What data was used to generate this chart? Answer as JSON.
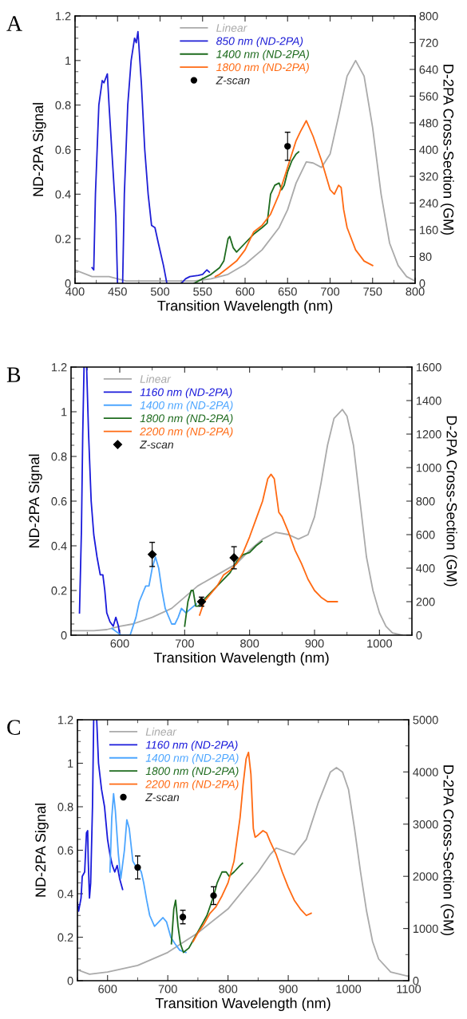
{
  "chart_data": [
    {
      "type": "line",
      "title": "A",
      "xlabel": "Transition Wavelength (nm)",
      "ylabel": "ND-2PA Signal",
      "y2label": "D-2PA Cross-Section (GM)",
      "legend": "top",
      "grid": false,
      "xlim": [
        400,
        800
      ],
      "xticks": [
        400,
        450,
        500,
        550,
        600,
        650,
        700,
        750,
        800
      ],
      "ylim": [
        0,
        1.2
      ],
      "yticks": [
        0,
        0.2,
        0.4,
        0.6,
        0.8,
        1,
        1.2
      ],
      "y2lim": [
        0,
        800
      ],
      "y2ticks": [
        0,
        80,
        160,
        240,
        320,
        400,
        480,
        560,
        640,
        720,
        800
      ],
      "series": [
        {
          "name": "Linear",
          "color": "#aaaaaa",
          "x": [
            400,
            420,
            440,
            460,
            500,
            540,
            560,
            580,
            600,
            620,
            640,
            650,
            660,
            672,
            680,
            690,
            700,
            710,
            720,
            730,
            740,
            750,
            760,
            770,
            780,
            790,
            800
          ],
          "values": [
            0.06,
            0.03,
            0.03,
            0.01,
            0.01,
            0.01,
            0.02,
            0.04,
            0.085,
            0.15,
            0.25,
            0.33,
            0.45,
            0.545,
            0.54,
            0.52,
            0.58,
            0.75,
            0.93,
            1.0,
            0.93,
            0.7,
            0.4,
            0.18,
            0.08,
            0.03,
            0.01
          ]
        },
        {
          "name": "850 nm (ND-2PA)",
          "color": "#1f1fd6",
          "x": [
            420,
            422,
            424,
            426,
            428,
            432,
            434,
            438,
            440,
            444,
            448,
            450,
            453,
            456,
            458,
            462,
            466,
            470,
            472,
            474,
            478,
            482,
            486,
            490,
            494,
            498,
            504,
            508,
            516,
            525,
            530,
            535,
            545,
            550,
            555,
            558
          ],
          "values": [
            0.07,
            0.06,
            0.4,
            0.6,
            0.8,
            0.91,
            0.9,
            0.94,
            0.8,
            0.55,
            0.3,
            0,
            null,
            0,
            0.4,
            0.8,
            1.0,
            1.1,
            1.08,
            1.13,
            0.9,
            0.6,
            0.4,
            0.26,
            0.25,
            0.18,
            0.08,
            0,
            null,
            0,
            0.02,
            0.03,
            0.035,
            0.04,
            0.06,
            0.05
          ]
        },
        {
          "name": "1400 nm (ND-2PA)",
          "color": "#1e6b1e",
          "x": [
            540,
            550,
            560,
            570,
            575,
            580,
            582,
            586,
            590,
            600,
            610,
            620,
            626,
            630,
            635,
            640,
            643,
            646,
            650,
            655,
            660,
            663
          ],
          "values": [
            0,
            0.02,
            0.04,
            0.07,
            0.1,
            0.2,
            0.21,
            0.16,
            0.14,
            0.18,
            0.22,
            0.25,
            0.27,
            0.4,
            0.44,
            0.45,
            0.42,
            0.44,
            0.5,
            0.55,
            0.58,
            0.59
          ]
        },
        {
          "name": "1800 nm (ND-2PA)",
          "color": "#ff6a13",
          "x": [
            565,
            570,
            580,
            590,
            600,
            610,
            620,
            630,
            640,
            650,
            660,
            665,
            672,
            680,
            690,
            700,
            705,
            710,
            713,
            716,
            720,
            730,
            740,
            750
          ],
          "values": [
            0.03,
            0.04,
            0.07,
            0.1,
            0.15,
            0.23,
            0.26,
            0.31,
            0.4,
            0.52,
            0.64,
            0.68,
            0.73,
            0.66,
            0.55,
            0.42,
            0.4,
            0.44,
            0.43,
            0.33,
            0.25,
            0.15,
            0.1,
            0.08
          ]
        },
        {
          "name": "Z-scan",
          "type": "scatter",
          "axis": "y2",
          "marker": "circle",
          "color": "#000000",
          "x": [
            650
          ],
          "values": [
            410
          ],
          "errors": [
            42
          ]
        }
      ]
    },
    {
      "type": "line",
      "title": "B",
      "xlabel": "Transition Wavelength (nm)",
      "ylabel": "ND-2PA Signal",
      "y2label": "D-2PA Cross-Section (GM)",
      "legend": "top left",
      "grid": false,
      "xlim": [
        525,
        1050
      ],
      "xticks": [
        600,
        700,
        800,
        900,
        1000
      ],
      "ylim": [
        0,
        1.2
      ],
      "yticks": [
        0,
        0.2,
        0.4,
        0.6,
        0.8,
        1,
        1.2
      ],
      "y2lim": [
        0,
        1600
      ],
      "y2ticks": [
        0,
        200,
        400,
        600,
        800,
        1000,
        1200,
        1400,
        1600
      ],
      "series": [
        {
          "name": "Linear",
          "color": "#aaaaaa",
          "x": [
            525,
            560,
            580,
            600,
            620,
            650,
            680,
            700,
            720,
            750,
            780,
            800,
            820,
            840,
            860,
            875,
            890,
            900,
            910,
            920,
            930,
            943,
            950,
            960,
            970,
            980,
            990,
            1000,
            1010,
            1020,
            1035
          ],
          "values": [
            0.02,
            0.02,
            0.025,
            0.04,
            0.05,
            0.08,
            0.12,
            0.17,
            0.22,
            0.27,
            0.32,
            0.38,
            0.43,
            0.46,
            0.45,
            0.43,
            0.45,
            0.53,
            0.68,
            0.85,
            0.97,
            1.01,
            0.98,
            0.85,
            0.6,
            0.35,
            0.2,
            0.1,
            0.04,
            0.01,
            0
          ]
        },
        {
          "name": "1160 nm (ND-2PA)",
          "color": "#1a1adb",
          "x": [
            538,
            541,
            543,
            545,
            547,
            549,
            552,
            556,
            560,
            565,
            570,
            574,
            577,
            580,
            585,
            590,
            594,
            598,
            600
          ],
          "values": [
            0.1,
            0.47,
            0.9,
            1.2,
            null,
            1.2,
            0.9,
            0.6,
            0.45,
            0.35,
            0.27,
            0.27,
            0.2,
            0.1,
            0.06,
            0.04,
            0.08,
            0.04,
            0
          ]
        },
        {
          "name": "1400 nm (ND-2PA)",
          "color": "#4da6ff",
          "x": [
            588,
            602,
            616,
            625,
            630,
            640,
            645,
            650,
            655,
            660,
            665,
            670,
            680,
            685,
            690,
            695,
            702,
            710,
            718
          ],
          "values": [
            0.03,
            0,
            0,
            0.08,
            0.15,
            0.22,
            0.22,
            0.3,
            0.35,
            0.3,
            0.2,
            0.12,
            0.05,
            0.05,
            0.08,
            0.12,
            0.1,
            0.12,
            0.14
          ]
        },
        {
          "name": "1800 nm (ND-2PA)",
          "color": "#1e6b1e",
          "x": [
            700,
            705,
            710,
            713,
            717,
            721,
            730,
            750,
            770,
            780,
            790,
            800,
            810,
            819
          ],
          "values": [
            0.04,
            0.15,
            0.2,
            0.2,
            0.13,
            0.13,
            0.16,
            0.22,
            0.28,
            0.33,
            0.36,
            0.37,
            0.4,
            0.42
          ]
        },
        {
          "name": "2200 nm (ND-2PA)",
          "color": "#ff6a13",
          "x": [
            723,
            730,
            750,
            760,
            770,
            780,
            790,
            800,
            810,
            820,
            828,
            833,
            838,
            845,
            850,
            860,
            870,
            880,
            890,
            900,
            910,
            920,
            935
          ],
          "values": [
            0.09,
            0.15,
            0.22,
            0.27,
            0.29,
            0.32,
            0.37,
            0.44,
            0.52,
            0.6,
            0.7,
            0.72,
            0.7,
            0.55,
            0.53,
            0.46,
            0.38,
            0.32,
            0.25,
            0.2,
            0.17,
            0.15,
            0.15
          ]
        },
        {
          "name": "Z-scan",
          "type": "scatter",
          "axis": "y2",
          "marker": "diamond",
          "color": "#000000",
          "x": [
            650,
            726,
            776
          ],
          "values": [
            482,
            200,
            462
          ],
          "errors": [
            72,
            27,
            66
          ]
        }
      ]
    },
    {
      "type": "line",
      "title": "C",
      "xlabel": "Transition Wavelength (nm)",
      "ylabel": "ND-2PA Signal",
      "y2label": "D-2PA Cross-Section (GM)",
      "legend": "top left",
      "grid": false,
      "xlim": [
        550,
        1100
      ],
      "xticks": [
        600,
        700,
        800,
        900,
        1000,
        1100
      ],
      "ylim": [
        0,
        1.2
      ],
      "yticks": [
        0,
        0.2,
        0.4,
        0.6,
        0.8,
        1,
        1.2
      ],
      "y2lim": [
        0,
        5000
      ],
      "y2ticks": [
        0,
        1000,
        2000,
        3000,
        4000,
        5000
      ],
      "series": [
        {
          "name": "Linear",
          "color": "#aaaaaa",
          "x": [
            550,
            570,
            600,
            650,
            700,
            750,
            800,
            850,
            870,
            880,
            900,
            910,
            930,
            950,
            970,
            980,
            990,
            1000,
            1010,
            1020,
            1030,
            1040,
            1050,
            1070,
            1100
          ],
          "values": [
            0.05,
            0.03,
            0.04,
            0.07,
            0.13,
            0.22,
            0.33,
            0.5,
            0.58,
            0.61,
            0.59,
            0.58,
            0.65,
            0.82,
            0.96,
            0.98,
            0.96,
            0.88,
            0.7,
            0.5,
            0.32,
            0.18,
            0.1,
            0.04,
            0.02
          ]
        },
        {
          "name": "1160 nm (ND-2PA)",
          "color": "#1a1adb",
          "x": [
            550,
            552,
            556,
            558,
            562,
            565,
            567,
            568,
            570,
            572,
            575,
            577,
            579,
            582,
            585,
            590,
            595,
            600,
            604,
            608,
            612,
            616,
            620,
            625
          ],
          "values": [
            0.36,
            0.32,
            0.38,
            0.48,
            0.5,
            0.68,
            0.69,
            0.55,
            0.38,
            0.45,
            0.8,
            1.2,
            null,
            1.2,
            1.0,
            0.88,
            0.8,
            0.65,
            0.58,
            0.53,
            0.5,
            0.53,
            0.47,
            0.42
          ]
        },
        {
          "name": "1400 nm (ND-2PA)",
          "color": "#4da6ff",
          "x": [
            604,
            607,
            610,
            613,
            618,
            622,
            628,
            632,
            636,
            642,
            648,
            652,
            656,
            660,
            665,
            670,
            678,
            685,
            692,
            698,
            705,
            712,
            720,
            730
          ],
          "values": [
            0.5,
            0.75,
            0.86,
            0.78,
            0.58,
            0.47,
            0.6,
            0.74,
            0.7,
            0.55,
            0.52,
            0.52,
            0.5,
            0.45,
            0.37,
            0.3,
            0.25,
            0.27,
            0.29,
            0.27,
            0.2,
            0.17,
            0.14,
            0.13
          ]
        },
        {
          "name": "1800 nm (ND-2PA)",
          "color": "#1e6b1e",
          "x": [
            706,
            710,
            713,
            717,
            721,
            726,
            735,
            745,
            755,
            765,
            775,
            782,
            790,
            797,
            802,
            810,
            820,
            824
          ],
          "values": [
            0.17,
            0.33,
            0.37,
            0.25,
            0.17,
            0.13,
            0.15,
            0.2,
            0.25,
            0.3,
            0.38,
            0.45,
            0.5,
            0.5,
            0.48,
            0.5,
            0.53,
            0.54
          ]
        },
        {
          "name": "2200 nm (ND-2PA)",
          "color": "#ff6a13",
          "x": [
            742,
            750,
            760,
            770,
            780,
            790,
            800,
            810,
            815,
            820,
            825,
            830,
            834,
            838,
            842,
            845,
            850,
            858,
            864,
            870,
            880,
            890,
            900,
            910,
            920,
            930,
            938
          ],
          "values": [
            0.18,
            0.22,
            0.26,
            0.31,
            0.34,
            0.39,
            0.45,
            0.55,
            0.65,
            0.75,
            0.9,
            1.02,
            1.05,
            0.95,
            0.7,
            0.66,
            0.67,
            0.69,
            0.68,
            0.64,
            0.58,
            0.5,
            0.43,
            0.37,
            0.33,
            0.3,
            0.31
          ]
        },
        {
          "name": "Z-scan",
          "type": "scatter",
          "axis": "y2",
          "marker": "circle",
          "color": "#000000",
          "x": [
            650,
            725,
            776
          ],
          "values": [
            2170,
            1220,
            1630
          ],
          "errors": [
            220,
            130,
            170
          ]
        }
      ]
    }
  ]
}
